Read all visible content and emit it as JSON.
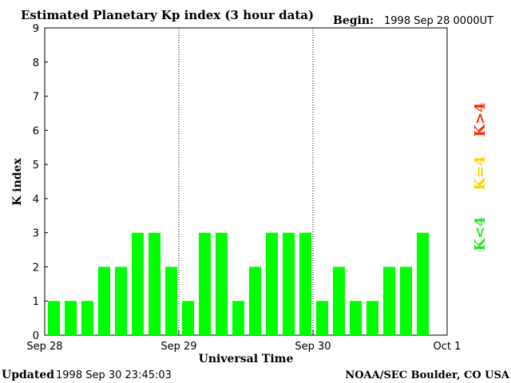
{
  "header": {
    "title": "Estimated Planetary Kp index (3 hour data)",
    "begin_label": "Begin:",
    "begin_value": "1998 Sep 28 0000UT"
  },
  "footer": {
    "updated_label": "Updated",
    "updated_value": "1998 Sep 30 23:45:03",
    "source": "NOAA/SEC Boulder, CO USA"
  },
  "legend": {
    "items": [
      {
        "label": "K>4",
        "color": "#ff2a00"
      },
      {
        "label": "K=4",
        "color": "#ffd200"
      },
      {
        "label": "K<4",
        "color": "#22e822"
      }
    ]
  },
  "chart_data": {
    "type": "bar",
    "title": "Estimated Planetary Kp index (3 hour data)",
    "xlabel": "Universal Time",
    "ylabel": "K index",
    "ylim": [
      0,
      9
    ],
    "yticks": [
      "0",
      "1",
      "2",
      "3",
      "4",
      "5",
      "6",
      "7",
      "8",
      "9"
    ],
    "xtick_labels": [
      "Sep 28",
      "Sep 29",
      "Sep 30",
      "Oct 1"
    ],
    "day_separators": true,
    "values": [
      1,
      1,
      1,
      2,
      2,
      3,
      3,
      2,
      1,
      3,
      3,
      1,
      2,
      3,
      3,
      3,
      1,
      2,
      1,
      1,
      2,
      2,
      3
    ],
    "bar_color": "#00ff00"
  }
}
